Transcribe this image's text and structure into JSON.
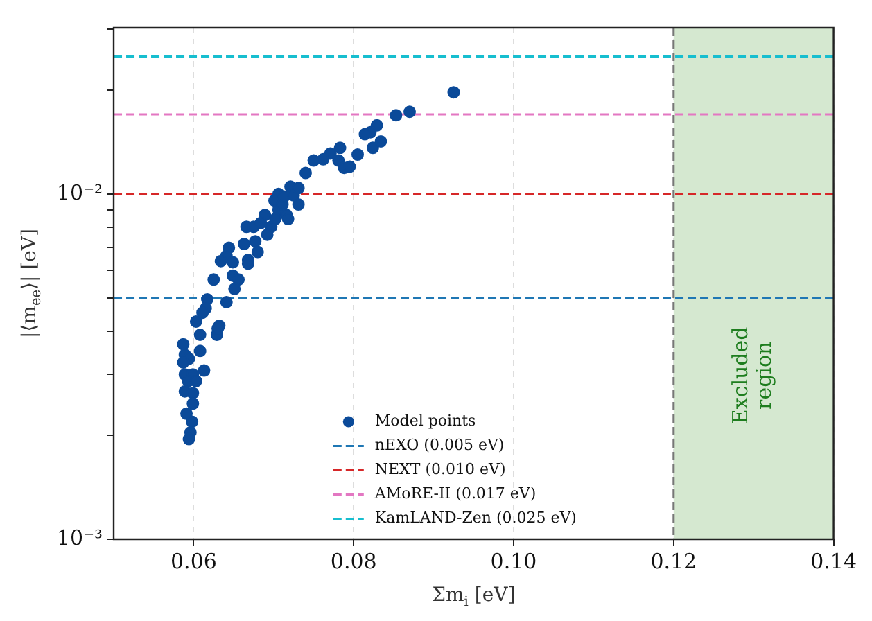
{
  "chart_data": {
    "type": "scatter",
    "xlabel": "Σm$_{i}$ [eV]",
    "ylabel": "|⟨m$_{ee}$⟩| [eV]",
    "log": "y",
    "grid": "x",
    "legend": "bottom center",
    "marker": "circle",
    "xlim": [
      0.05,
      0.14
    ],
    "xticks": [
      {
        "value": 0.06,
        "label": "0.06"
      },
      {
        "value": 0.08,
        "label": "0.08"
      },
      {
        "value": 0.1,
        "label": "0.10"
      },
      {
        "value": 0.12,
        "label": "0.12"
      },
      {
        "value": 0.14,
        "label": "0.14"
      }
    ],
    "ylim": [
      0.001,
      0.0303
    ],
    "yticks": [
      {
        "value": 0.001,
        "label": "10⁻³"
      },
      {
        "value": 0.002,
        "label": null
      },
      {
        "value": 0.003,
        "label": null
      },
      {
        "value": 0.004,
        "label": null
      },
      {
        "value": 0.005,
        "label": null
      },
      {
        "value": 0.006,
        "label": null
      },
      {
        "value": 0.007,
        "label": null
      },
      {
        "value": 0.008,
        "label": null
      },
      {
        "value": 0.009,
        "label": null
      },
      {
        "value": 0.01,
        "label": "10⁻²"
      },
      {
        "value": 0.02,
        "label": null
      },
      {
        "value": 0.03,
        "label": null
      }
    ],
    "series": [
      {
        "name": "Model points",
        "color": "#0b4a99",
        "x": [
          0.0925,
          0.087,
          0.0853,
          0.0829,
          0.0821,
          0.0814,
          0.0834,
          0.0824,
          0.0805,
          0.0783,
          0.0771,
          0.0762,
          0.075,
          0.074,
          0.0781,
          0.0788,
          0.0795,
          0.0721,
          0.0706,
          0.0701,
          0.0731,
          0.0706,
          0.0689,
          0.0716,
          0.0718,
          0.0666,
          0.0675,
          0.0697,
          0.0692,
          0.0663,
          0.0677,
          0.068,
          0.0644,
          0.0641,
          0.0634,
          0.0649,
          0.0668,
          0.0668,
          0.0625,
          0.0649,
          0.0656,
          0.0651,
          0.0617,
          0.0615,
          0.0611,
          0.0641,
          0.0603,
          0.0608,
          0.0632,
          0.0629,
          0.063,
          0.0587,
          0.0608,
          0.0589,
          0.0594,
          0.0587,
          0.0589,
          0.0599,
          0.0613,
          0.0593,
          0.0603,
          0.0589,
          0.0599,
          0.0599,
          0.0591,
          0.0598,
          0.0596,
          0.0594,
          0.0711,
          0.0702,
          0.0684,
          0.0713,
          0.0725,
          0.0731
        ],
        "values": [
          0.0197,
          0.0173,
          0.0169,
          0.0158,
          0.0151,
          0.0149,
          0.0142,
          0.0136,
          0.013,
          0.0136,
          0.0131,
          0.0126,
          0.0125,
          0.0115,
          0.0125,
          0.0119,
          0.012,
          0.0105,
          0.01,
          0.00957,
          0.00932,
          0.009,
          0.00869,
          0.00869,
          0.00846,
          0.00803,
          0.00803,
          0.00803,
          0.00762,
          0.00716,
          0.00729,
          0.00679,
          0.00698,
          0.00662,
          0.00639,
          0.00634,
          0.00644,
          0.00628,
          0.00565,
          0.0058,
          0.00565,
          0.00531,
          0.00495,
          0.00466,
          0.00453,
          0.00486,
          0.00427,
          0.00391,
          0.00415,
          0.00391,
          0.00408,
          0.00367,
          0.00351,
          0.00342,
          0.00333,
          0.00325,
          0.003,
          0.003,
          0.00308,
          0.00287,
          0.00287,
          0.00268,
          0.00265,
          0.00247,
          0.00231,
          0.00219,
          0.00204,
          0.00195,
          0.00932,
          0.00846,
          0.00824,
          0.00983,
          0.00991,
          0.0104
        ]
      }
    ],
    "ref_lines": [
      {
        "axis": "y",
        "value": 0.005,
        "label": "nEXO (0.005 eV)",
        "color": "#1f77b4",
        "line_style": "dashed"
      },
      {
        "axis": "y",
        "value": 0.01,
        "label": "NEXT (0.010 eV)",
        "color": "#d62728",
        "line_style": "dashed"
      },
      {
        "axis": "y",
        "value": 0.017,
        "label": "AMoRE-II (0.017 eV)",
        "color": "#e377c2",
        "line_style": "dashed"
      },
      {
        "axis": "y",
        "value": 0.025,
        "label": "KamLAND-Zen (0.025 eV)",
        "color": "#17becf",
        "line_style": "dashed"
      },
      {
        "axis": "x",
        "value": 0.12,
        "color": "#777777",
        "line_style": "dashed"
      }
    ],
    "bands": [
      {
        "axis": "x",
        "from": 0.12,
        "to": 0.14,
        "label": "Excluded\nregion",
        "color": "#d5e8d0"
      }
    ]
  }
}
